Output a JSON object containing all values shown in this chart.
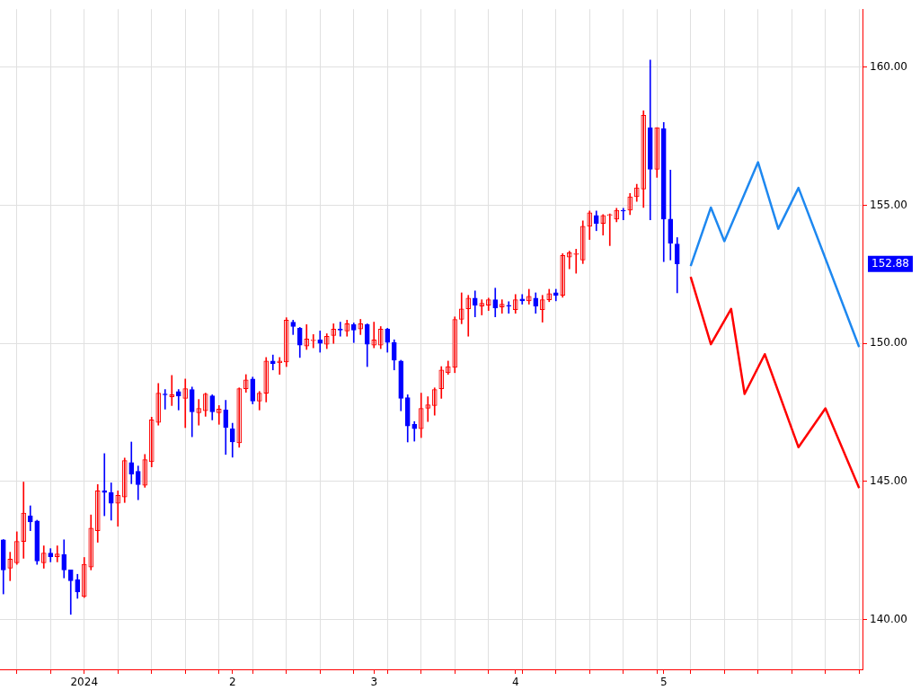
{
  "chart_data": {
    "type": "candlestick",
    "categories": [
      null,
      null,
      null,
      null,
      null,
      null,
      null,
      null,
      null,
      null,
      null,
      null,
      "2024",
      null,
      null,
      null,
      null,
      null,
      null,
      null,
      null,
      null,
      null,
      null,
      null,
      null,
      null,
      null,
      null,
      null,
      null,
      null,
      null,
      null,
      "2",
      null,
      null,
      null,
      null,
      null,
      null,
      null,
      null,
      null,
      null,
      null,
      null,
      null,
      null,
      null,
      null,
      null,
      null,
      null,
      null,
      "3",
      null,
      null,
      null,
      null,
      null,
      null,
      null,
      null,
      null,
      null,
      null,
      null,
      null,
      null,
      null,
      null,
      null,
      null,
      null,
      null,
      "4",
      null,
      null,
      null,
      null,
      null,
      null,
      null,
      null,
      null,
      null,
      null,
      null,
      null,
      null,
      null,
      null,
      null,
      null,
      null,
      null,
      null,
      "5",
      null,
      null,
      null,
      null,
      null,
      null,
      null,
      null,
      null,
      null,
      null,
      null,
      null,
      null,
      null,
      null,
      null,
      null,
      null,
      null,
      null,
      null,
      null,
      null,
      null,
      null,
      null,
      null,
      null
    ],
    "ohlc": [
      [
        142.89,
        142.9,
        140.93,
        141.8
      ],
      [
        141.86,
        142.44,
        141.41,
        142.19
      ],
      [
        142.06,
        143.18,
        142.0,
        142.83
      ],
      [
        142.83,
        144.98,
        142.22,
        143.86
      ],
      [
        143.76,
        144.12,
        143.22,
        143.54
      ],
      [
        143.57,
        143.6,
        142.0,
        142.12
      ],
      [
        142.06,
        142.67,
        141.86,
        142.41
      ],
      [
        142.41,
        142.57,
        142.09,
        142.28
      ],
      [
        142.28,
        142.67,
        142.09,
        142.38
      ],
      [
        142.35,
        142.89,
        141.51,
        141.8
      ],
      [
        141.8,
        141.8,
        140.19,
        141.41
      ],
      [
        141.45,
        141.64,
        140.77,
        141.0
      ],
      [
        140.84,
        142.25,
        140.8,
        142.0
      ],
      [
        141.9,
        143.79,
        141.8,
        143.31
      ],
      [
        143.22,
        144.89,
        142.8,
        144.66
      ],
      [
        144.66,
        146.01,
        143.76,
        144.6
      ],
      [
        144.6,
        144.95,
        143.6,
        144.21
      ],
      [
        144.21,
        144.66,
        143.38,
        144.5
      ],
      [
        144.44,
        145.85,
        144.24,
        145.76
      ],
      [
        145.69,
        146.43,
        144.92,
        145.27
      ],
      [
        145.37,
        145.56,
        144.34,
        144.89
      ],
      [
        144.86,
        145.98,
        144.79,
        145.79
      ],
      [
        145.72,
        147.33,
        145.53,
        147.23
      ],
      [
        147.14,
        148.55,
        147.04,
        148.2
      ],
      [
        148.17,
        148.33,
        147.62,
        148.14
      ],
      [
        148.07,
        148.84,
        147.75,
        148.14
      ],
      [
        148.26,
        148.33,
        147.59,
        148.1
      ],
      [
        148.01,
        148.71,
        146.95,
        148.36
      ],
      [
        148.33,
        148.42,
        146.62,
        147.52
      ],
      [
        147.49,
        147.97,
        147.04,
        147.65
      ],
      [
        147.56,
        148.2,
        147.36,
        148.17
      ],
      [
        148.1,
        148.14,
        147.23,
        147.52
      ],
      [
        147.49,
        147.75,
        147.07,
        147.62
      ],
      [
        147.59,
        147.94,
        145.98,
        146.95
      ],
      [
        146.91,
        147.11,
        145.88,
        146.43
      ],
      [
        146.4,
        148.39,
        146.24,
        148.36
      ],
      [
        148.36,
        148.87,
        148.23,
        148.68
      ],
      [
        148.71,
        148.78,
        147.81,
        147.91
      ],
      [
        147.91,
        148.26,
        147.59,
        148.2
      ],
      [
        148.2,
        149.49,
        147.88,
        149.36
      ],
      [
        149.36,
        149.58,
        149.04,
        149.27
      ],
      [
        149.3,
        149.49,
        148.88,
        149.36
      ],
      [
        149.33,
        150.93,
        149.16,
        150.84
      ],
      [
        150.77,
        150.84,
        150.32,
        150.61
      ],
      [
        150.55,
        150.58,
        149.49,
        149.94
      ],
      [
        149.9,
        150.68,
        149.78,
        150.16
      ],
      [
        150.1,
        150.32,
        149.84,
        150.13
      ],
      [
        150.13,
        150.45,
        149.68,
        150.0
      ],
      [
        149.97,
        150.35,
        149.81,
        150.26
      ],
      [
        150.29,
        150.71,
        150.0,
        150.52
      ],
      [
        150.52,
        150.77,
        150.26,
        150.48
      ],
      [
        150.45,
        150.84,
        150.26,
        150.71
      ],
      [
        150.68,
        150.74,
        150.03,
        150.48
      ],
      [
        150.52,
        150.87,
        150.32,
        150.71
      ],
      [
        150.68,
        150.71,
        149.16,
        149.97
      ],
      [
        149.94,
        150.77,
        149.84,
        150.13
      ],
      [
        149.94,
        150.61,
        149.81,
        150.52
      ],
      [
        150.52,
        150.55,
        149.68,
        150.03
      ],
      [
        150.03,
        150.13,
        149.04,
        149.39
      ],
      [
        149.36,
        149.39,
        147.56,
        148.01
      ],
      [
        148.04,
        148.14,
        146.43,
        147.01
      ],
      [
        147.07,
        147.17,
        146.46,
        146.91
      ],
      [
        146.91,
        148.2,
        146.59,
        147.65
      ],
      [
        147.65,
        148.07,
        147.17,
        147.78
      ],
      [
        147.75,
        148.39,
        147.4,
        148.33
      ],
      [
        148.36,
        149.16,
        148.01,
        149.04
      ],
      [
        148.94,
        149.36,
        148.88,
        149.16
      ],
      [
        149.13,
        150.96,
        148.94,
        150.87
      ],
      [
        150.87,
        151.83,
        150.71,
        151.25
      ],
      [
        151.25,
        151.74,
        150.26,
        151.64
      ],
      [
        151.64,
        151.9,
        150.96,
        151.38
      ],
      [
        151.35,
        151.58,
        151.03,
        151.45
      ],
      [
        151.38,
        151.64,
        151.19,
        151.58
      ],
      [
        151.58,
        152.0,
        150.96,
        151.29
      ],
      [
        151.32,
        151.58,
        151.09,
        151.42
      ],
      [
        151.38,
        151.51,
        151.09,
        151.35
      ],
      [
        151.22,
        151.77,
        151.09,
        151.58
      ],
      [
        151.61,
        151.77,
        151.42,
        151.54
      ],
      [
        151.54,
        151.96,
        151.42,
        151.7
      ],
      [
        151.64,
        151.83,
        151.09,
        151.35
      ],
      [
        151.22,
        151.74,
        150.77,
        151.58
      ],
      [
        151.58,
        151.96,
        151.51,
        151.8
      ],
      [
        151.83,
        151.96,
        151.54,
        151.74
      ],
      [
        151.74,
        153.25,
        151.67,
        153.18
      ],
      [
        153.12,
        153.34,
        152.7,
        153.28
      ],
      [
        153.22,
        153.41,
        152.54,
        153.25
      ],
      [
        153.02,
        154.44,
        152.89,
        154.24
      ],
      [
        154.24,
        154.79,
        153.76,
        154.73
      ],
      [
        154.63,
        154.79,
        154.08,
        154.34
      ],
      [
        154.34,
        154.66,
        153.92,
        154.63
      ],
      [
        154.63,
        154.69,
        153.54,
        154.66
      ],
      [
        154.5,
        154.89,
        154.4,
        154.82
      ],
      [
        154.82,
        154.89,
        154.47,
        154.79
      ],
      [
        154.82,
        155.43,
        154.66,
        155.31
      ],
      [
        155.31,
        155.76,
        155.14,
        155.63
      ],
      [
        155.59,
        158.42,
        154.92,
        158.26
      ],
      [
        157.81,
        160.26,
        154.47,
        156.3
      ],
      [
        156.3,
        157.81,
        156.01,
        157.81
      ],
      [
        157.78,
        158.0,
        152.96,
        154.5
      ],
      [
        154.5,
        156.27,
        153.02,
        153.63
      ],
      [
        153.6,
        153.83,
        151.83,
        152.88
      ],
      null,
      null,
      null,
      null,
      null,
      null,
      null,
      null,
      null,
      null,
      null,
      null,
      null,
      null,
      null,
      null,
      null,
      null,
      null,
      null,
      null,
      null,
      null,
      null,
      null,
      null,
      null
    ],
    "colors": [
      "#0000ff",
      "#ff0000",
      "#ff0000",
      "#ff0000",
      "#0000ff",
      "#0000ff",
      "#ff0000",
      "#0000ff",
      "#ff0000",
      "#0000ff",
      "#0000ff",
      "#0000ff",
      "#ff0000",
      "#ff0000",
      "#ff0000",
      "#0000ff",
      "#0000ff",
      "#ff0000",
      "#ff0000",
      "#0000ff",
      "#0000ff",
      "#ff0000",
      "#ff0000",
      "#ff0000",
      "#0000ff",
      "#ff0000",
      "#0000ff",
      "#ff0000",
      "#0000ff",
      "#ff0000",
      "#ff0000",
      "#0000ff",
      "#ff0000",
      "#0000ff",
      "#0000ff",
      "#ff0000",
      "#ff0000",
      "#0000ff",
      "#ff0000",
      "#ff0000",
      "#0000ff",
      "#ff0000",
      "#ff0000",
      "#0000ff",
      "#0000ff",
      "#ff0000",
      "#ff0000",
      "#0000ff",
      "#ff0000",
      "#ff0000",
      "#0000ff",
      "#ff0000",
      "#0000ff",
      "#ff0000",
      "#0000ff",
      "#ff0000",
      "#ff0000",
      "#0000ff",
      "#0000ff",
      "#0000ff",
      "#0000ff",
      "#0000ff",
      "#ff0000",
      "#ff0000",
      "#ff0000",
      "#ff0000",
      "#ff0000",
      "#ff0000",
      "#ff0000",
      "#ff0000",
      "#0000ff",
      "#ff0000",
      "#ff0000",
      "#0000ff",
      "#ff0000",
      "#0000ff",
      "#ff0000",
      "#0000ff",
      "#ff0000",
      "#0000ff",
      "#ff0000",
      "#ff0000",
      "#0000ff",
      "#ff0000",
      "#ff0000",
      "#ff0000",
      "#ff0000",
      "#ff0000",
      "#0000ff",
      "#ff0000",
      "#ff0000",
      "#ff0000",
      "#0000ff",
      "#ff0000",
      "#ff0000",
      "#ff0000",
      "#0000ff",
      "#ff0000",
      "#0000ff",
      "#0000ff",
      "#0000ff",
      null,
      null,
      null,
      null,
      null,
      null,
      null,
      null,
      null,
      null,
      null,
      null,
      null,
      null,
      null,
      null,
      null,
      null,
      null,
      null,
      null,
      null,
      null,
      null,
      null,
      null,
      null
    ],
    "series": [
      {
        "type": "line",
        "color": "#1e88f0",
        "values": [
          null,
          null,
          null,
          null,
          null,
          null,
          null,
          null,
          null,
          null,
          null,
          null,
          null,
          null,
          null,
          null,
          null,
          null,
          null,
          null,
          null,
          null,
          null,
          null,
          null,
          null,
          null,
          null,
          null,
          null,
          null,
          null,
          null,
          null,
          null,
          null,
          null,
          null,
          null,
          null,
          null,
          null,
          null,
          null,
          null,
          null,
          null,
          null,
          null,
          null,
          null,
          null,
          null,
          null,
          null,
          null,
          null,
          null,
          null,
          null,
          null,
          null,
          null,
          null,
          null,
          null,
          null,
          null,
          null,
          null,
          null,
          null,
          null,
          null,
          null,
          null,
          null,
          null,
          null,
          null,
          null,
          null,
          null,
          null,
          null,
          null,
          null,
          null,
          null,
          null,
          null,
          null,
          null,
          null,
          null,
          null,
          null,
          null,
          null,
          null,
          null,
          null,
          152.8,
          null,
          null,
          154.92,
          null,
          153.7,
          null,
          null,
          null,
          null,
          156.56,
          null,
          null,
          154.15,
          null,
          null,
          155.63,
          null,
          null,
          null,
          null,
          null,
          null,
          null,
          null,
          149.87
        ]
      },
      {
        "type": "line",
        "color": "#ff0000",
        "values": [
          null,
          null,
          null,
          null,
          null,
          null,
          null,
          null,
          null,
          null,
          null,
          null,
          null,
          null,
          null,
          null,
          null,
          null,
          null,
          null,
          null,
          null,
          null,
          null,
          null,
          null,
          null,
          null,
          null,
          null,
          null,
          null,
          null,
          null,
          null,
          null,
          null,
          null,
          null,
          null,
          null,
          null,
          null,
          null,
          null,
          null,
          null,
          null,
          null,
          null,
          null,
          null,
          null,
          null,
          null,
          null,
          null,
          null,
          null,
          null,
          null,
          null,
          null,
          null,
          null,
          null,
          null,
          null,
          null,
          null,
          null,
          null,
          null,
          null,
          null,
          null,
          null,
          null,
          null,
          null,
          null,
          null,
          null,
          null,
          null,
          null,
          null,
          null,
          null,
          null,
          null,
          null,
          null,
          null,
          null,
          null,
          null,
          null,
          null,
          null,
          null,
          null,
          152.41,
          null,
          null,
          149.97,
          null,
          null,
          151.25,
          null,
          148.17,
          null,
          null,
          149.61,
          null,
          null,
          null,
          null,
          146.24,
          null,
          null,
          null,
          147.65,
          null,
          null,
          null,
          null,
          144.76
        ]
      }
    ],
    "ylim": [
      138.2,
      162.1
    ],
    "yticks": [
      {
        "value": 140,
        "label": "140.00"
      },
      {
        "value": 145,
        "label": "145.00"
      },
      {
        "value": 150,
        "label": "150.00"
      },
      {
        "value": 155,
        "label": "155.00"
      },
      {
        "value": 160,
        "label": "160.00"
      }
    ],
    "grid": true,
    "annotations": [
      "152.88"
    ]
  }
}
